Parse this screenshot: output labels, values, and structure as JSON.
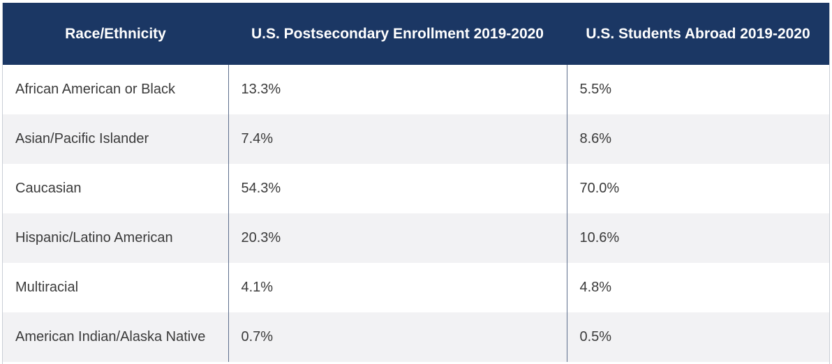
{
  "table": {
    "headers": [
      "Race/Ethnicity",
      "U.S. Postsecondary Enrollment 2019-2020",
      "U.S. Students Abroad 2019-2020"
    ],
    "rows": [
      [
        "African American or Black",
        "13.3%",
        "5.5%"
      ],
      [
        "Asian/Pacific Islander",
        "7.4%",
        "8.6%"
      ],
      [
        "Caucasian",
        "54.3%",
        "70.0%"
      ],
      [
        "Hispanic/Latino American",
        "20.3%",
        "10.6%"
      ],
      [
        "Multiracial",
        "4.1%",
        "4.8%"
      ],
      [
        "American Indian/Alaska Native",
        "0.7%",
        "0.5%"
      ]
    ]
  },
  "colors": {
    "header_bg": "#1b3764",
    "header_text": "#ffffff",
    "stripe_bg": "#f2f2f4",
    "divider": "#5e6f8c"
  }
}
